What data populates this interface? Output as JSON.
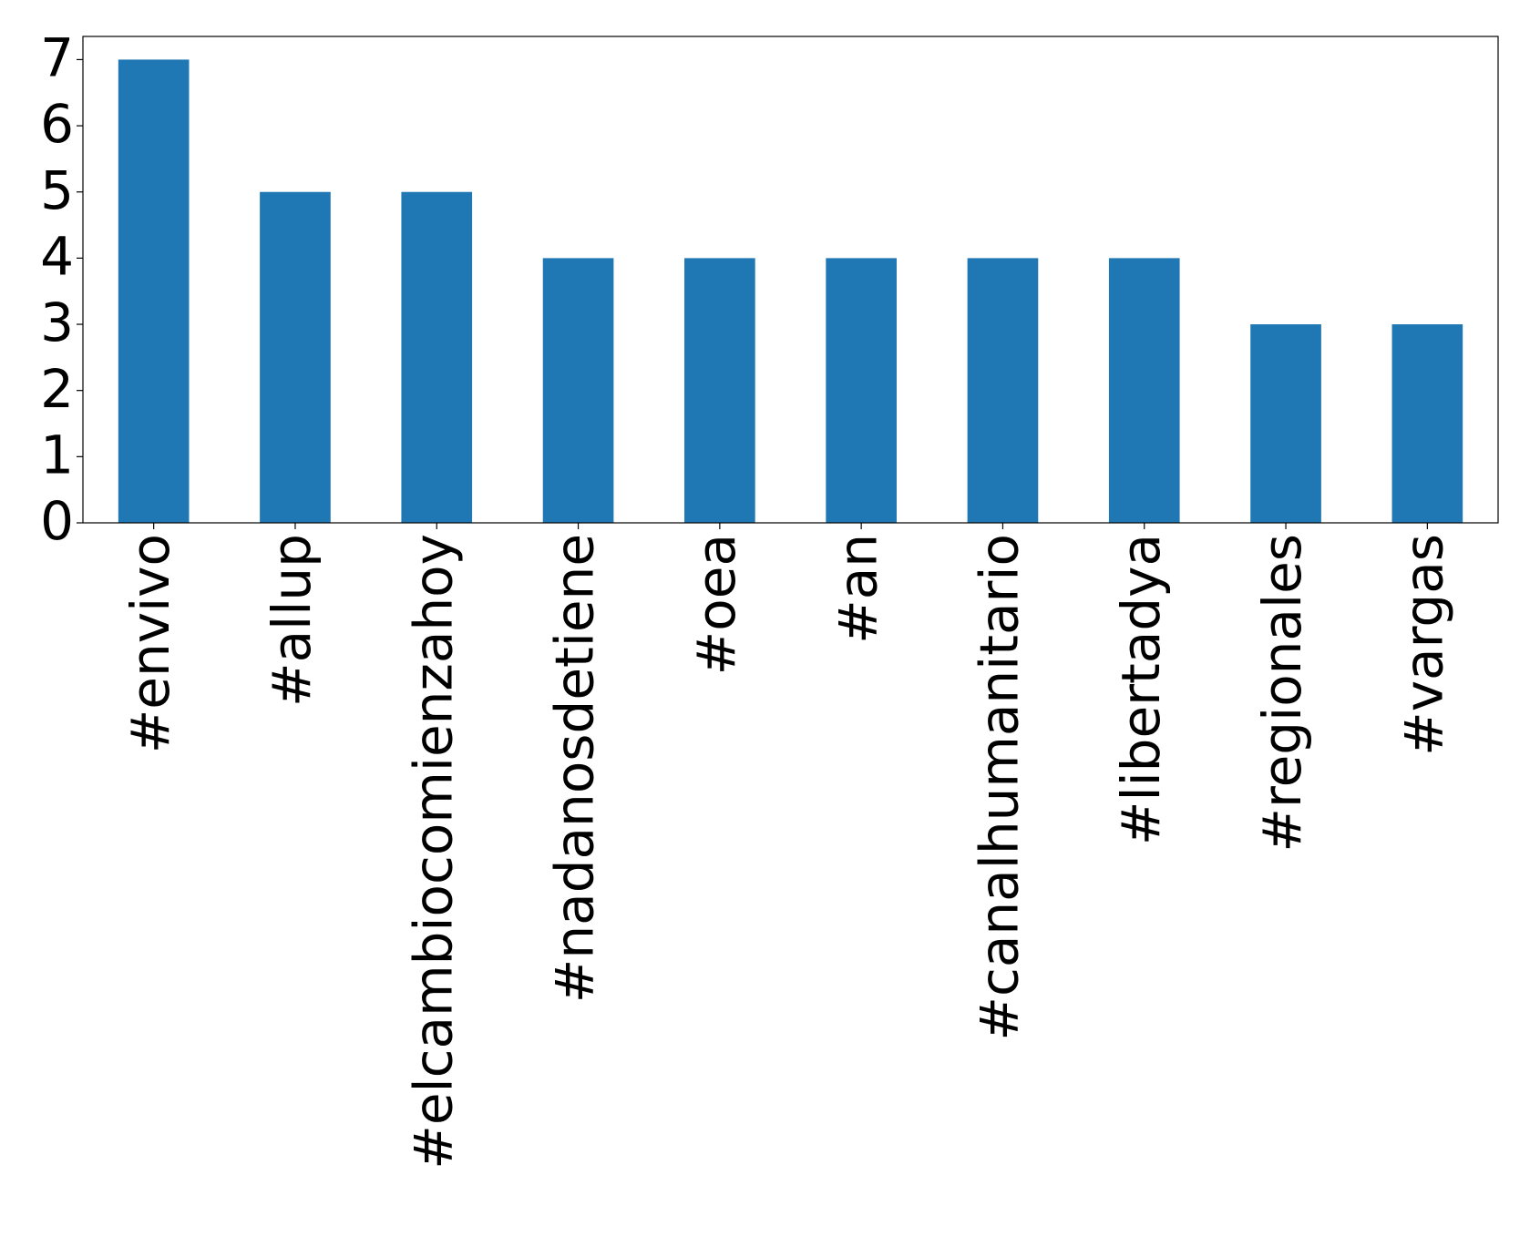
{
  "chart_data": {
    "type": "bar",
    "categories": [
      "#envivo",
      "#allup",
      "#elcambiocomienzahoy",
      "#nadanosdetiene",
      "#oea",
      "#an",
      "#canalhumanitario",
      "#libertadya",
      "#regionales",
      "#vargas"
    ],
    "values": [
      7,
      5,
      5,
      4,
      4,
      4,
      4,
      4,
      3,
      3
    ],
    "color": "#1f77b4",
    "ylim": [
      0,
      7.35
    ],
    "yticks": [
      0,
      1,
      2,
      3,
      4,
      5,
      6,
      7
    ],
    "grid": false
  }
}
